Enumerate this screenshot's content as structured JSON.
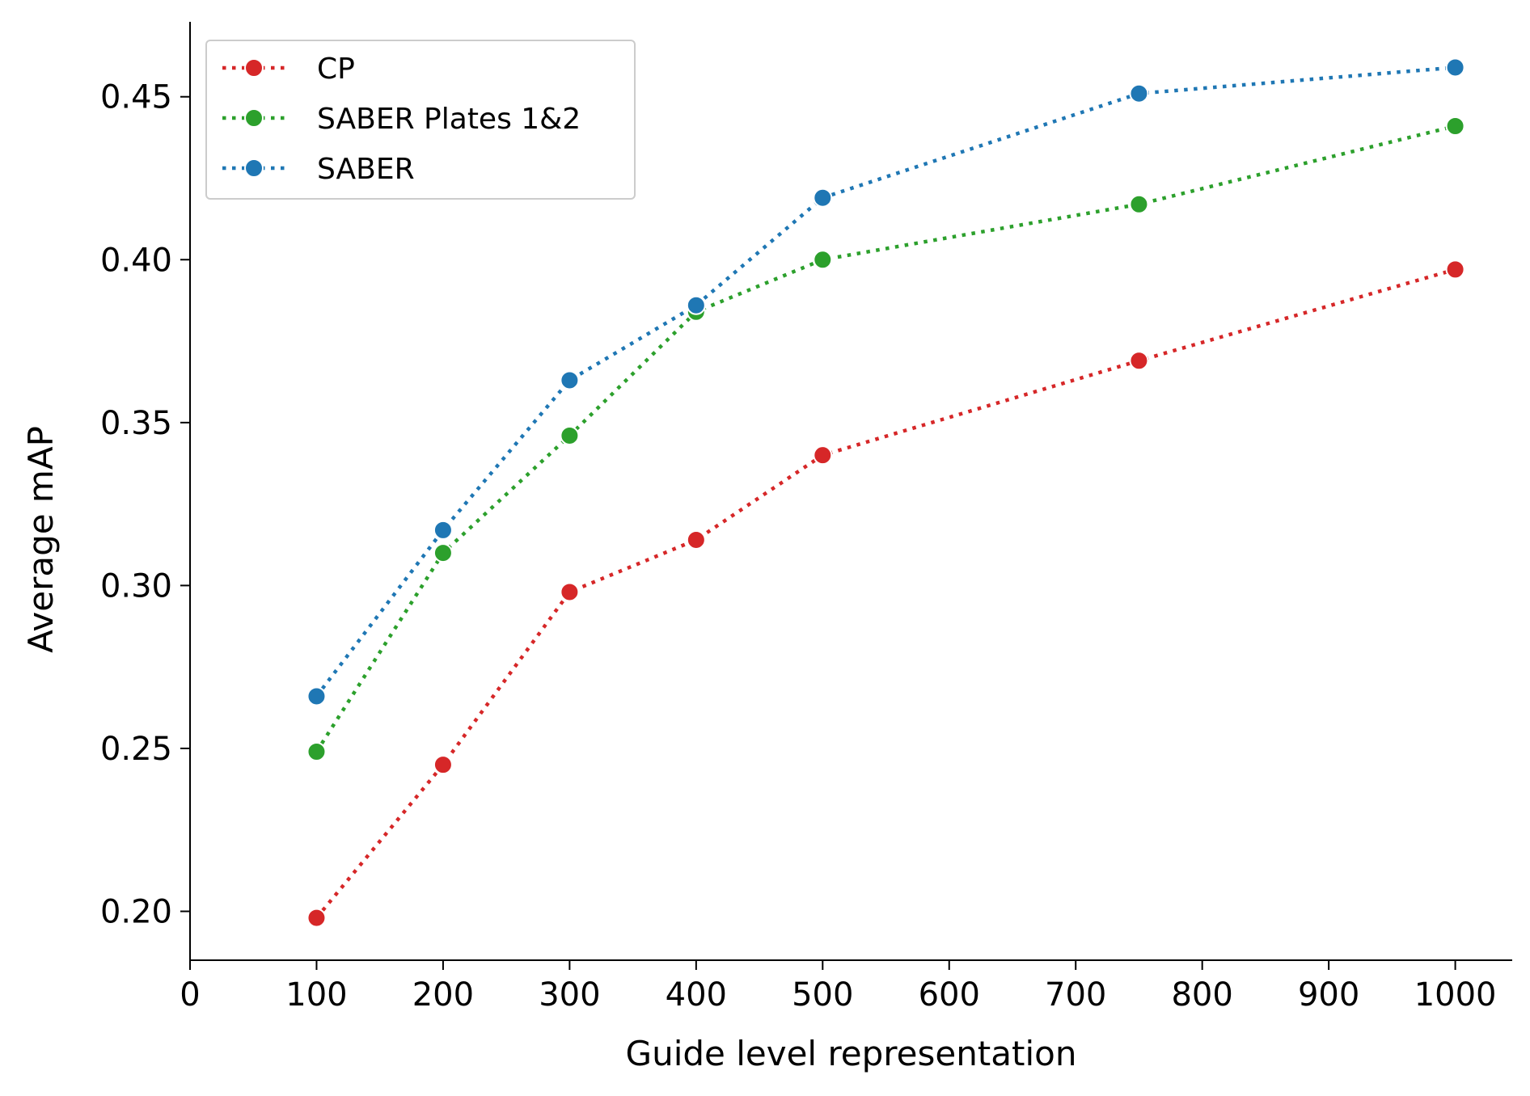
{
  "chart_data": {
    "type": "line",
    "title": "",
    "xlabel": "Guide level representation",
    "ylabel": "Average mAP",
    "xlim": [
      0,
      1045
    ],
    "ylim": [
      0.185,
      0.473
    ],
    "xticks": [
      0,
      100,
      200,
      300,
      400,
      500,
      600,
      700,
      800,
      900,
      1000
    ],
    "xtick_labels": [
      "0",
      "100",
      "200",
      "300",
      "400",
      "500",
      "600",
      "700",
      "800",
      "900",
      "1000"
    ],
    "yticks": [
      0.2,
      0.25,
      0.3,
      0.35,
      0.4,
      0.45
    ],
    "ytick_labels": [
      "0.20",
      "0.25",
      "0.30",
      "0.35",
      "0.40",
      "0.45"
    ],
    "grid": false,
    "legend_position": "top-left",
    "x": [
      100,
      200,
      300,
      400,
      500,
      750,
      1000
    ],
    "series": [
      {
        "name": "CP",
        "color": "#d62728",
        "line_style": "dotted",
        "marker": "circle",
        "values": [
          0.198,
          0.245,
          0.298,
          0.314,
          0.34,
          0.369,
          0.397
        ]
      },
      {
        "name": "SABER Plates 1&2",
        "color": "#2ca02c",
        "line_style": "dotted",
        "marker": "circle",
        "values": [
          0.249,
          0.31,
          0.346,
          0.384,
          0.4,
          0.417,
          0.441
        ]
      },
      {
        "name": "SABER",
        "color": "#1f77b4",
        "line_style": "dotted",
        "marker": "circle",
        "values": [
          0.266,
          0.317,
          0.363,
          0.386,
          0.419,
          0.451,
          0.459
        ]
      }
    ]
  }
}
